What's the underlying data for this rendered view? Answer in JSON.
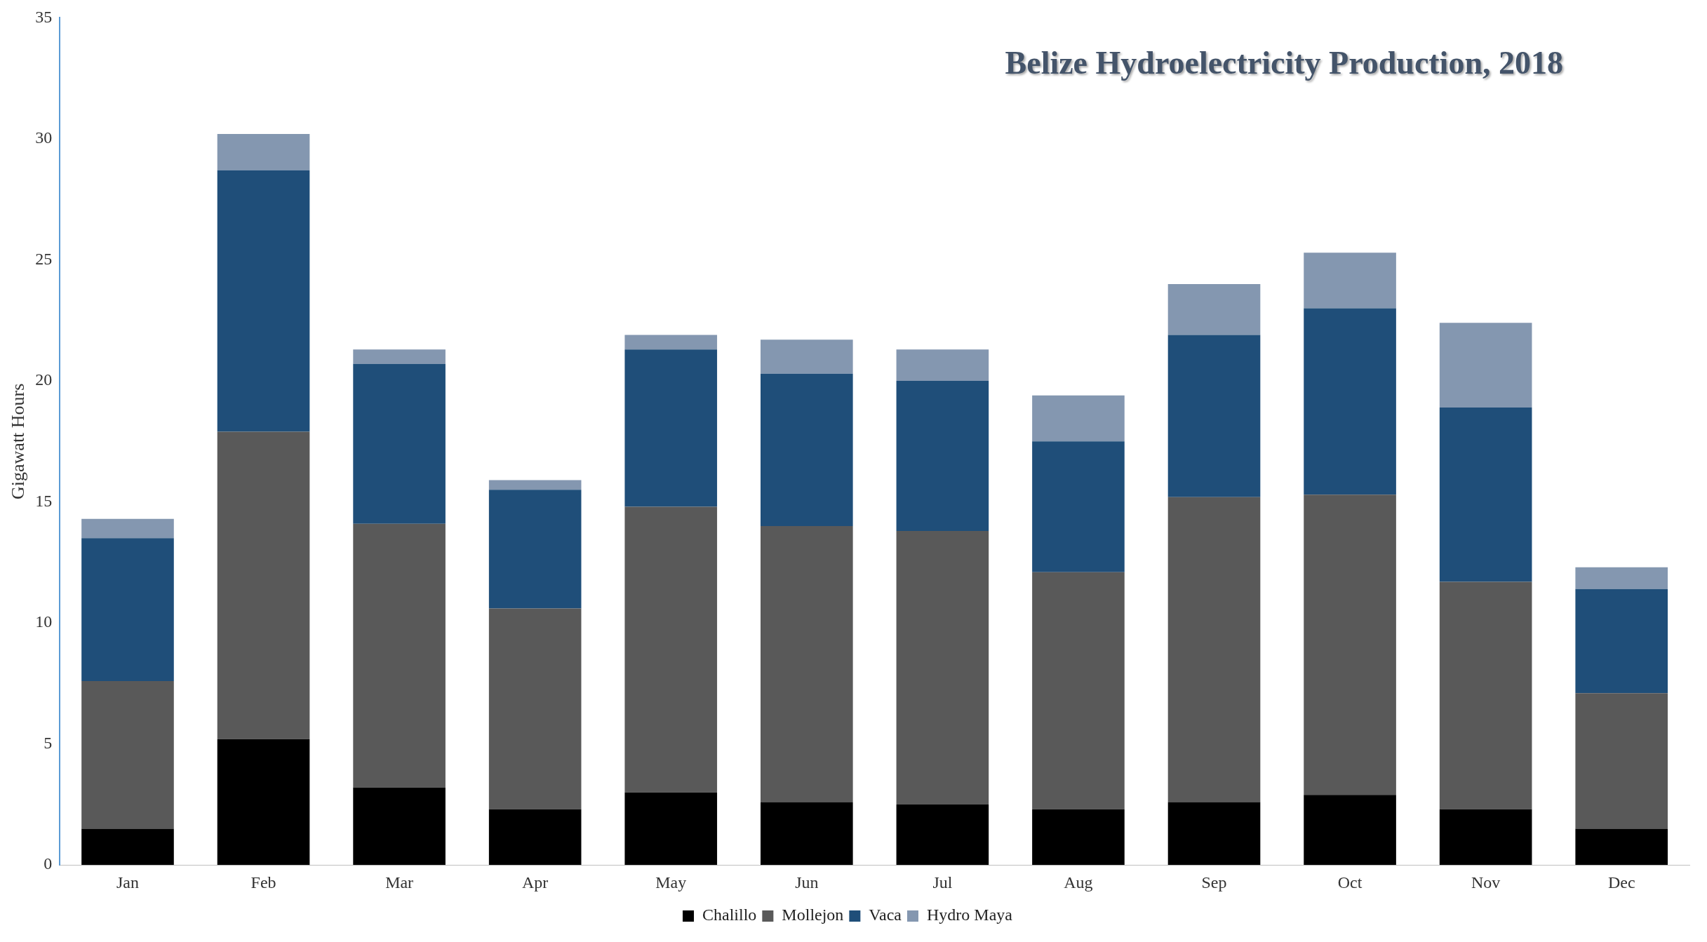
{
  "chart_data": {
    "type": "bar",
    "title": "Belize Hydroelectricity Production, 2018",
    "ylabel": "Gigawatt Hours",
    "categories": [
      "Jan",
      "Feb",
      "Mar",
      "Apr",
      "May",
      "Jun",
      "Jul",
      "Aug",
      "Sep",
      "Oct",
      "Nov",
      "Dec"
    ],
    "stacked": true,
    "series": [
      {
        "name": "Chalillo",
        "color": "#000000",
        "values": [
          1.5,
          5.2,
          3.2,
          2.3,
          3.0,
          2.6,
          2.5,
          2.3,
          2.6,
          2.9,
          2.3,
          1.5
        ]
      },
      {
        "name": "Mollejon",
        "color": "#595959",
        "values": [
          6.1,
          12.7,
          10.9,
          8.3,
          11.8,
          11.4,
          11.3,
          9.8,
          12.6,
          12.4,
          9.4,
          5.6
        ]
      },
      {
        "name": "Vaca",
        "color": "#1f4e79",
        "values": [
          5.9,
          10.8,
          6.6,
          4.9,
          6.5,
          6.3,
          6.2,
          5.4,
          6.7,
          7.7,
          7.2,
          4.3
        ]
      },
      {
        "name": "Hydro Maya",
        "color": "#8497b0",
        "values": [
          0.8,
          1.5,
          0.6,
          0.4,
          0.6,
          1.4,
          1.3,
          1.9,
          2.1,
          2.3,
          3.5,
          0.9
        ]
      }
    ],
    "ylim": [
      0,
      35
    ],
    "yticks": [
      0,
      5,
      10,
      15,
      20,
      25,
      30,
      35
    ],
    "grid": false,
    "legend": "bottom"
  }
}
